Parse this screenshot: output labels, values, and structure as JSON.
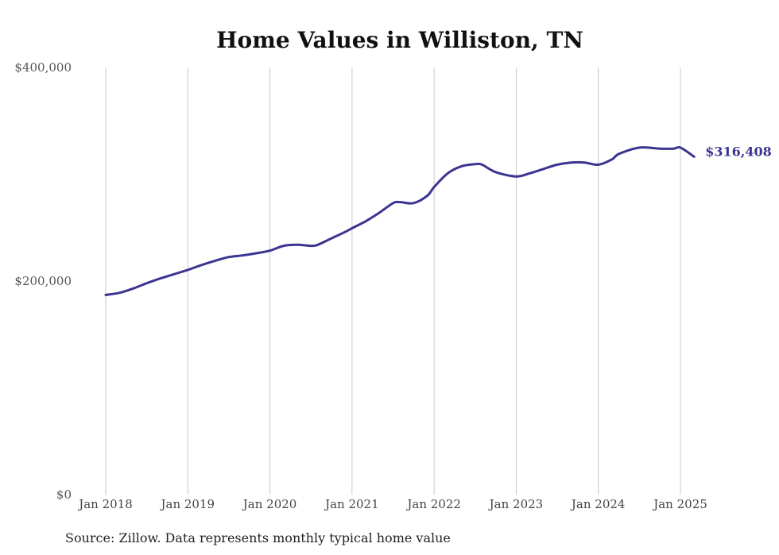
{
  "chart_data": {
    "type": "line",
    "title": "Home Values in Williston, TN",
    "xlabel": "",
    "ylabel": "",
    "ylim": [
      0,
      400000
    ],
    "y_ticks": [
      "$0",
      "$200,000",
      "$400,000"
    ],
    "y_tick_values": [
      0,
      200000,
      400000
    ],
    "x_ticks": [
      "Jan 2018",
      "Jan 2019",
      "Jan 2020",
      "Jan 2021",
      "Jan 2022",
      "Jan 2023",
      "Jan 2024",
      "Jan 2025"
    ],
    "x_tick_values": [
      2018,
      2019,
      2020,
      2021,
      2022,
      2023,
      2024,
      2025
    ],
    "grid": "vertical",
    "line_color": "#3b3591",
    "series": [
      {
        "x": [
          2018.0,
          2018.167,
          2018.333,
          2018.5,
          2018.667,
          2018.833,
          2019.0,
          2019.167,
          2019.333,
          2019.5,
          2019.667,
          2019.833,
          2020.0,
          2020.167,
          2020.333,
          2020.5,
          2020.583,
          2020.75,
          2020.917,
          2021.0,
          2021.167,
          2021.333,
          2021.5,
          2021.583,
          2021.75,
          2021.917,
          2022.0,
          2022.167,
          2022.333,
          2022.5,
          2022.583,
          2022.75,
          2023.0,
          2023.167,
          2023.333,
          2023.5,
          2023.667,
          2023.833,
          2024.0,
          2024.167,
          2024.25,
          2024.5,
          2024.75,
          2024.917,
          2025.0,
          2025.167
        ],
        "values": [
          187000,
          189000,
          193000,
          198000,
          202500,
          206500,
          210500,
          215000,
          219000,
          222500,
          224000,
          226000,
          228500,
          233000,
          234000,
          233000,
          234000,
          240000,
          246000,
          249500,
          256000,
          264000,
          273000,
          274000,
          273000,
          280000,
          288000,
          301000,
          307500,
          309500,
          309000,
          302000,
          298000,
          301000,
          305000,
          309000,
          311000,
          311000,
          309000,
          314000,
          319000,
          325000,
          324000,
          324000,
          325000,
          316408
        ]
      }
    ],
    "end_label": "$316,408"
  },
  "footer": {
    "source": "Source: Zillow. Data represents monthly typical home value"
  }
}
